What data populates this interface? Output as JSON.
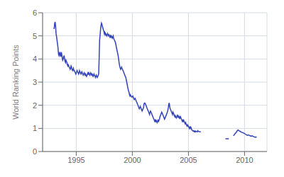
{
  "chart_data": {
    "type": "line",
    "ylabel": "World Ranking Points",
    "color": "#3344bb",
    "grid": true,
    "xlim": [
      1992,
      2012
    ],
    "xticks": [
      1995,
      2000,
      2005,
      2010
    ],
    "ylim": [
      0,
      6
    ],
    "yticks": [
      0,
      1,
      2,
      3,
      4,
      5,
      6
    ],
    "x": [
      1993.0,
      1993.04,
      1993.08,
      1993.12,
      1993.16,
      1993.2,
      1993.25,
      1993.29,
      1993.33,
      1993.37,
      1993.42,
      1993.46,
      1993.5,
      1993.54,
      1993.58,
      1993.62,
      1993.67,
      1993.71,
      1993.75,
      1993.79,
      1993.83,
      1993.88,
      1993.92,
      1993.96,
      1994.0,
      1994.04,
      1994.08,
      1994.12,
      1994.17,
      1994.21,
      1994.25,
      1994.29,
      1994.33,
      1994.37,
      1994.42,
      1994.46,
      1994.5,
      1994.54,
      1994.58,
      1994.62,
      1994.67,
      1994.71,
      1994.75,
      1994.79,
      1994.83,
      1994.87,
      1994.92,
      1994.96,
      1995.0,
      1995.04,
      1995.08,
      1995.12,
      1995.17,
      1995.21,
      1995.25,
      1995.29,
      1995.33,
      1995.37,
      1995.42,
      1995.46,
      1995.5,
      1995.54,
      1995.58,
      1995.62,
      1995.67,
      1995.71,
      1995.75,
      1995.79,
      1995.83,
      1995.87,
      1995.92,
      1995.96,
      1996.0,
      1996.04,
      1996.08,
      1996.12,
      1996.17,
      1996.21,
      1996.25,
      1996.29,
      1996.33,
      1996.37,
      1996.42,
      1996.46,
      1996.5,
      1996.54,
      1996.58,
      1996.62,
      1996.67,
      1996.71,
      1996.75,
      1996.79,
      1996.83,
      1996.87,
      1996.92,
      1996.96,
      1997.0,
      1997.04,
      1997.08,
      1997.12,
      1997.17,
      1997.21,
      1997.25,
      1997.29,
      1997.33,
      1997.37,
      1997.42,
      1997.46,
      1997.5,
      1997.54,
      1997.58,
      1997.62,
      1997.67,
      1997.71,
      1997.75,
      1997.79,
      1997.83,
      1997.87,
      1997.92,
      1997.96,
      1998.0,
      1998.04,
      1998.08,
      1998.12,
      1998.17,
      1998.21,
      1998.25,
      1998.29,
      1998.33,
      1998.37,
      1998.42,
      1998.46,
      1998.5,
      1998.54,
      1998.58,
      1998.62,
      1998.67,
      1998.71,
      1998.75,
      1998.79,
      1998.83,
      1998.87,
      1998.92,
      1998.96,
      1999.0,
      1999.04,
      1999.08,
      1999.12,
      1999.17,
      1999.21,
      1999.25,
      1999.29,
      1999.33,
      1999.37,
      1999.42,
      1999.46,
      1999.5,
      1999.54,
      1999.58,
      1999.62,
      1999.67,
      1999.71,
      1999.75,
      1999.79,
      1999.83,
      1999.87,
      1999.92,
      1999.96,
      2000.0,
      2000.04,
      2000.08,
      2000.12,
      2000.17,
      2000.21,
      2000.25,
      2000.29,
      2000.33,
      2000.37,
      2000.42,
      2000.46,
      2000.5,
      2000.54,
      2000.58,
      2000.62,
      2000.67,
      2000.71,
      2000.75,
      2000.79,
      2000.83,
      2000.87,
      2000.92,
      2000.96,
      2001.0,
      2001.04,
      2001.08,
      2001.12,
      2001.17,
      2001.21,
      2001.25,
      2001.29,
      2001.33,
      2001.37,
      2001.42,
      2001.46,
      2001.5,
      2001.54,
      2001.58,
      2001.62,
      2001.67,
      2001.71,
      2001.75,
      2001.79,
      2001.83,
      2001.87,
      2001.92,
      2001.96,
      2002.0,
      2002.04,
      2002.08,
      2002.12,
      2002.17,
      2002.21,
      2002.25,
      2002.29,
      2002.33,
      2002.37,
      2002.42,
      2002.46,
      2002.5,
      2002.54,
      2002.58,
      2002.62,
      2002.67,
      2002.71,
      2002.75,
      2002.79,
      2002.83,
      2002.87,
      2002.92,
      2002.96,
      2003.0,
      2003.04,
      2003.08,
      2003.12,
      2003.17,
      2003.21,
      2003.25,
      2003.29,
      2003.33,
      2003.37,
      2003.42,
      2003.46,
      2003.5,
      2003.54,
      2003.58,
      2003.62,
      2003.67,
      2003.71,
      2003.75,
      2003.79,
      2003.83,
      2003.87,
      2003.92,
      2003.96,
      2004.0,
      2004.04,
      2004.08,
      2004.12,
      2004.17,
      2004.21,
      2004.25,
      2004.29,
      2004.33,
      2004.37,
      2004.42,
      2004.46,
      2004.5,
      2004.54,
      2004.58,
      2004.62,
      2004.67,
      2004.71,
      2004.75,
      2004.79,
      2004.83,
      2004.87,
      2004.92,
      2004.96,
      2005.0,
      2005.04,
      2005.08,
      2005.12,
      2005.17,
      2005.21,
      2005.25,
      2005.29,
      2005.33,
      2005.37,
      2005.42,
      2005.46,
      2005.5,
      2005.54,
      2005.58,
      2005.62,
      2005.67,
      2005.71,
      2005.75,
      2005.79,
      2005.83,
      2005.87,
      2005.92,
      2005.96,
      2006.0,
      2006.1,
      null,
      2008.3,
      2008.4,
      2008.5,
      2008.6,
      null,
      2009.0,
      2009.08,
      2009.17,
      2009.25,
      2009.33,
      2009.42,
      2009.5,
      2009.58,
      2009.67,
      2009.75,
      2009.83,
      2009.92,
      2010.0,
      2010.08,
      2010.17,
      2010.25,
      2010.33,
      2010.42,
      2010.5,
      2010.58,
      2010.67,
      2010.75,
      2010.83,
      2010.92,
      2011.0,
      2011.08
    ],
    "values": [
      5.3,
      5.35,
      5.55,
      5.6,
      5.42,
      5.1,
      4.95,
      4.8,
      4.65,
      4.5,
      4.2,
      4.15,
      4.25,
      4.3,
      4.15,
      4.1,
      4.3,
      4.2,
      4.05,
      3.95,
      4.0,
      4.1,
      4.15,
      4.0,
      3.9,
      3.85,
      3.95,
      3.9,
      3.85,
      3.75,
      3.7,
      3.75,
      3.7,
      3.65,
      3.6,
      3.55,
      3.6,
      3.7,
      3.65,
      3.55,
      3.5,
      3.55,
      3.6,
      3.5,
      3.5,
      3.45,
      3.4,
      3.35,
      3.4,
      3.45,
      3.5,
      3.45,
      3.4,
      3.35,
      3.4,
      3.5,
      3.45,
      3.4,
      3.35,
      3.4,
      3.45,
      3.4,
      3.35,
      3.3,
      3.35,
      3.4,
      3.35,
      3.3,
      3.35,
      3.3,
      3.25,
      3.3,
      3.35,
      3.4,
      3.35,
      3.4,
      3.35,
      3.3,
      3.35,
      3.4,
      3.35,
      3.3,
      3.35,
      3.3,
      3.25,
      3.3,
      3.35,
      3.3,
      3.25,
      3.2,
      3.25,
      3.3,
      3.25,
      3.2,
      3.25,
      3.3,
      3.35,
      4.0,
      4.8,
      5.0,
      5.3,
      5.45,
      5.55,
      5.5,
      5.4,
      5.35,
      5.25,
      5.2,
      5.1,
      5.15,
      5.05,
      5.1,
      5.05,
      5.0,
      5.05,
      5.1,
      5.05,
      5.0,
      5.05,
      5.0,
      4.95,
      5.0,
      4.95,
      5.0,
      4.95,
      4.9,
      4.95,
      5.0,
      4.9,
      4.85,
      4.8,
      4.75,
      4.7,
      4.6,
      4.5,
      4.4,
      4.3,
      4.2,
      4.1,
      3.95,
      3.8,
      3.7,
      3.6,
      3.55,
      3.6,
      3.65,
      3.6,
      3.55,
      3.5,
      3.45,
      3.4,
      3.35,
      3.3,
      3.25,
      3.2,
      3.1,
      3.0,
      2.9,
      2.8,
      2.7,
      2.6,
      2.55,
      2.45,
      2.4,
      2.45,
      2.4,
      2.38,
      2.35,
      2.38,
      2.4,
      2.35,
      2.3,
      2.25,
      2.28,
      2.3,
      2.25,
      2.2,
      2.15,
      2.1,
      2.05,
      2.0,
      1.95,
      1.9,
      1.85,
      1.9,
      1.95,
      1.9,
      1.85,
      1.8,
      1.75,
      1.8,
      1.85,
      1.9,
      2.05,
      2.1,
      2.1,
      2.05,
      2.0,
      1.95,
      1.9,
      1.85,
      1.8,
      1.75,
      1.7,
      1.65,
      1.6,
      1.7,
      1.75,
      1.7,
      1.65,
      1.6,
      1.55,
      1.5,
      1.45,
      1.4,
      1.35,
      1.3,
      1.35,
      1.3,
      1.35,
      1.3,
      1.25,
      1.3,
      1.35,
      1.3,
      1.35,
      1.4,
      1.5,
      1.55,
      1.6,
      1.65,
      1.7,
      1.65,
      1.6,
      1.55,
      1.5,
      1.45,
      1.4,
      1.45,
      1.5,
      1.55,
      1.6,
      1.65,
      1.7,
      1.8,
      1.9,
      2.05,
      2.1,
      1.95,
      1.85,
      1.8,
      1.75,
      1.7,
      1.65,
      1.6,
      1.7,
      1.65,
      1.6,
      1.55,
      1.5,
      1.55,
      1.5,
      1.45,
      1.5,
      1.55,
      1.5,
      1.55,
      1.5,
      1.45,
      1.5,
      1.45,
      1.5,
      1.45,
      1.4,
      1.35,
      1.3,
      1.35,
      1.3,
      1.35,
      1.3,
      1.25,
      1.2,
      1.25,
      1.2,
      1.15,
      1.1,
      1.15,
      1.1,
      1.1,
      1.05,
      1.0,
      1.05,
      1.0,
      1.05,
      1.0,
      0.95,
      0.92,
      0.9,
      0.88,
      0.9,
      0.88,
      0.85,
      0.88,
      0.85,
      0.88,
      0.87,
      0.86,
      0.85,
      0.9,
      0.88,
      0.87,
      0.86,
      0.86,
      0.85,
      null,
      0.55,
      0.55,
      0.55,
      0.55,
      null,
      0.68,
      0.72,
      0.78,
      0.82,
      0.88,
      0.93,
      0.9,
      0.88,
      0.85,
      0.83,
      0.82,
      0.8,
      0.78,
      0.75,
      0.72,
      0.7,
      0.72,
      0.7,
      0.68,
      0.66,
      0.68,
      0.66,
      0.64,
      0.62,
      0.63,
      0.62
    ]
  }
}
